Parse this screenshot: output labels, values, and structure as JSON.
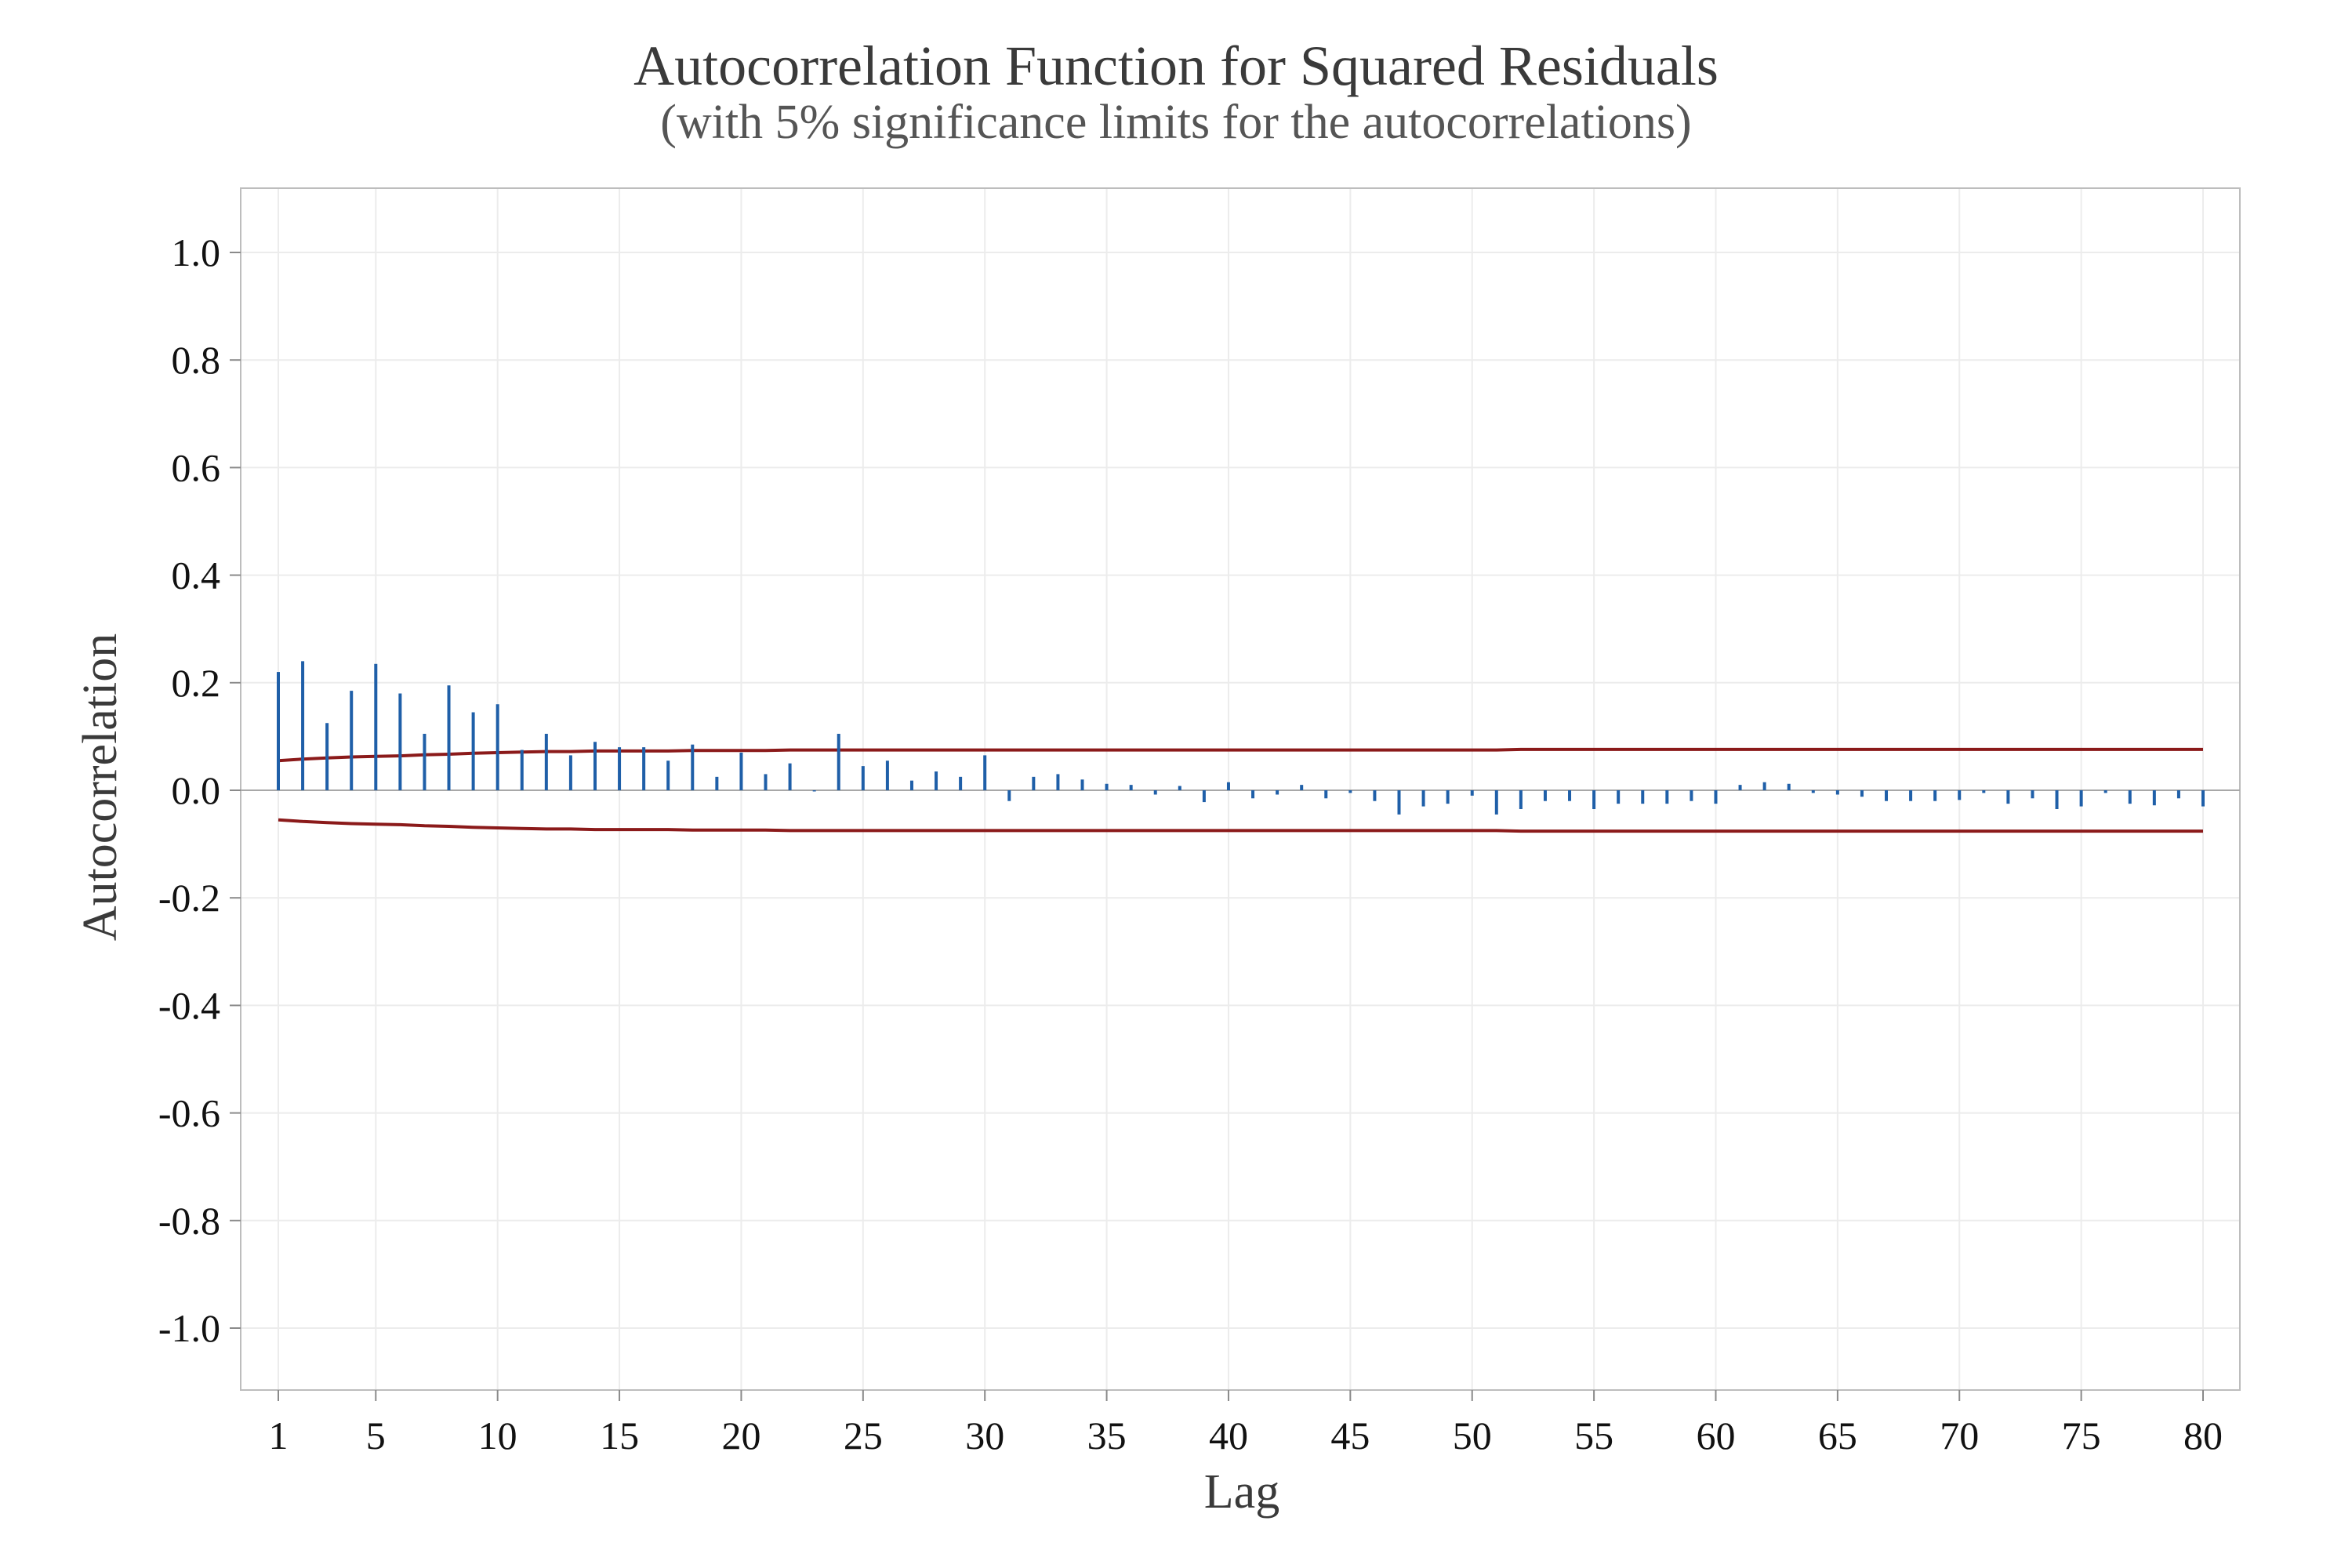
{
  "chart_data": {
    "type": "bar",
    "title": "Autocorrelation Function for Squared Residuals",
    "subtitle": "(with 5% significance limits for the autocorrelations)",
    "xlabel": "Lag",
    "ylabel": "Autocorrelation",
    "xlim": [
      1,
      80
    ],
    "ylim": [
      -1.0,
      1.0
    ],
    "x_ticks": [
      1,
      5,
      10,
      15,
      20,
      25,
      30,
      35,
      40,
      45,
      50,
      55,
      60,
      65,
      70,
      75,
      80
    ],
    "x_tick_labels": [
      "1",
      "5",
      "10",
      "15",
      "20",
      "25",
      "30",
      "35",
      "40",
      "45",
      "50",
      "55",
      "60",
      "65",
      "70",
      "75",
      "80"
    ],
    "y_ticks": [
      1.0,
      0.8,
      0.6,
      0.4,
      0.2,
      0.0,
      -0.2,
      -0.4,
      -0.6,
      -0.8,
      -1.0
    ],
    "y_tick_labels": [
      "1.0",
      "0.8",
      "0.6",
      "0.4",
      "0.2",
      "0.0",
      "-0.2",
      "-0.4",
      "-0.6",
      "-0.8",
      "-1.0"
    ],
    "grid": true,
    "lags": [
      1,
      2,
      3,
      4,
      5,
      6,
      7,
      8,
      9,
      10,
      11,
      12,
      13,
      14,
      15,
      16,
      17,
      18,
      19,
      20,
      21,
      22,
      23,
      24,
      25,
      26,
      27,
      28,
      29,
      30,
      31,
      32,
      33,
      34,
      35,
      36,
      37,
      38,
      39,
      40,
      41,
      42,
      43,
      44,
      45,
      46,
      47,
      48,
      49,
      50,
      51,
      52,
      53,
      54,
      55,
      56,
      57,
      58,
      59,
      60,
      61,
      62,
      63,
      64,
      65,
      66,
      67,
      68,
      69,
      70,
      71,
      72,
      73,
      74,
      75,
      76,
      77,
      78,
      79,
      80
    ],
    "values": [
      0.22,
      0.24,
      0.125,
      0.185,
      0.235,
      0.18,
      0.105,
      0.195,
      0.145,
      0.16,
      0.075,
      0.105,
      0.065,
      0.09,
      0.08,
      0.08,
      0.055,
      0.085,
      0.025,
      0.07,
      0.03,
      0.05,
      -0.002,
      0.105,
      0.045,
      0.055,
      0.018,
      0.035,
      0.025,
      0.065,
      -0.02,
      0.025,
      0.03,
      0.02,
      0.012,
      0.01,
      -0.008,
      0.008,
      -0.022,
      0.015,
      -0.015,
      -0.008,
      0.01,
      -0.015,
      -0.005,
      -0.02,
      -0.045,
      -0.03,
      -0.025,
      -0.01,
      -0.045,
      -0.035,
      -0.02,
      -0.02,
      -0.035,
      -0.025,
      -0.025,
      -0.025,
      -0.02,
      -0.025,
      0.01,
      0.015,
      0.012,
      -0.005,
      -0.008,
      -0.012,
      -0.02,
      -0.02,
      -0.02,
      -0.018,
      -0.005,
      -0.025,
      -0.015,
      -0.035,
      -0.03,
      -0.005,
      -0.025,
      -0.028,
      -0.015,
      -0.03
    ],
    "significance_limits": {
      "upper": [
        0.055,
        0.058,
        0.06,
        0.062,
        0.063,
        0.064,
        0.066,
        0.067,
        0.069,
        0.07,
        0.071,
        0.072,
        0.072,
        0.073,
        0.073,
        0.073,
        0.073,
        0.074,
        0.074,
        0.074,
        0.074,
        0.075,
        0.075,
        0.075,
        0.075,
        0.075,
        0.075,
        0.075,
        0.075,
        0.075,
        0.075,
        0.075,
        0.075,
        0.075,
        0.075,
        0.075,
        0.075,
        0.075,
        0.075,
        0.075,
        0.075,
        0.075,
        0.075,
        0.075,
        0.075,
        0.075,
        0.075,
        0.075,
        0.075,
        0.075,
        0.075,
        0.076,
        0.076,
        0.076,
        0.076,
        0.076,
        0.076,
        0.076,
        0.076,
        0.076,
        0.076,
        0.076,
        0.076,
        0.076,
        0.076,
        0.076,
        0.076,
        0.076,
        0.076,
        0.076,
        0.076,
        0.076,
        0.076,
        0.076,
        0.076,
        0.076,
        0.076,
        0.076,
        0.076,
        0.076
      ],
      "lower": [
        -0.055,
        -0.058,
        -0.06,
        -0.062,
        -0.063,
        -0.064,
        -0.066,
        -0.067,
        -0.069,
        -0.07,
        -0.071,
        -0.072,
        -0.072,
        -0.073,
        -0.073,
        -0.073,
        -0.073,
        -0.074,
        -0.074,
        -0.074,
        -0.074,
        -0.075,
        -0.075,
        -0.075,
        -0.075,
        -0.075,
        -0.075,
        -0.075,
        -0.075,
        -0.075,
        -0.075,
        -0.075,
        -0.075,
        -0.075,
        -0.075,
        -0.075,
        -0.075,
        -0.075,
        -0.075,
        -0.075,
        -0.075,
        -0.075,
        -0.075,
        -0.075,
        -0.075,
        -0.075,
        -0.075,
        -0.075,
        -0.075,
        -0.075,
        -0.075,
        -0.076,
        -0.076,
        -0.076,
        -0.076,
        -0.076,
        -0.076,
        -0.076,
        -0.076,
        -0.076,
        -0.076,
        -0.076,
        -0.076,
        -0.076,
        -0.076,
        -0.076,
        -0.076,
        -0.076,
        -0.076,
        -0.076,
        -0.076,
        -0.076,
        -0.076,
        -0.076,
        -0.076,
        -0.076,
        -0.076,
        -0.076,
        -0.076,
        -0.076
      ]
    },
    "colors": {
      "bars": "#1f5fa8",
      "limits": "#8b1a1a",
      "zero_line": "#a8a8a8",
      "grid": "#ececec",
      "frame": "#bdbdbd",
      "tick_marks": "#8a8a8a"
    }
  }
}
